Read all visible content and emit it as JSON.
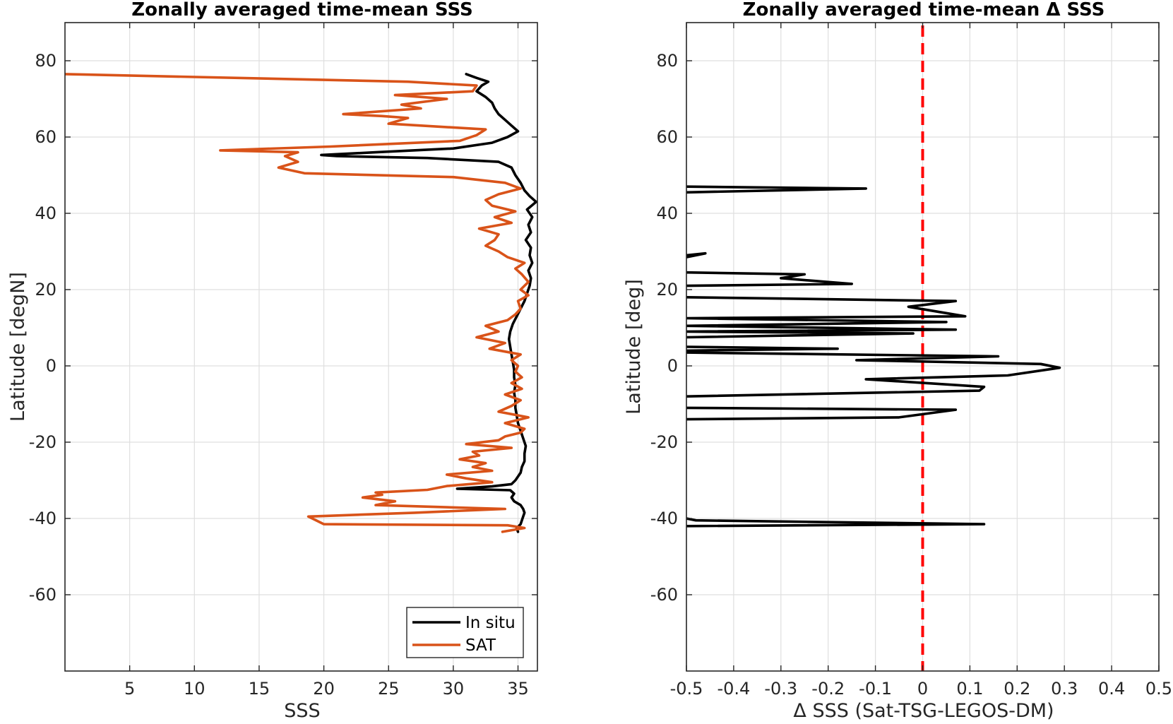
{
  "chart_data": [
    {
      "type": "line",
      "title": "Zonally averaged time-mean SSS",
      "xlabel": "SSS",
      "ylabel": "Latitude [degN]",
      "xlim": [
        0,
        36.5
      ],
      "ylim": [
        -80,
        90
      ],
      "xticks": [
        5,
        10,
        15,
        20,
        25,
        30,
        35
      ],
      "yticks": [
        -60,
        -40,
        -20,
        0,
        20,
        40,
        60,
        80
      ],
      "grid": true,
      "legend": "bottom-right",
      "series": [
        {
          "name": "In situ",
          "color": "#000000",
          "points": [
            [
              35,
              -43.5
            ],
            [
              34.9,
              -42.5
            ],
            [
              35.2,
              -41.5
            ],
            [
              35.3,
              -40.5
            ],
            [
              35.4,
              -39.5
            ],
            [
              35.5,
              -38.5
            ],
            [
              35.4,
              -37.5
            ],
            [
              35.2,
              -36.5
            ],
            [
              34.7,
              -35.5
            ],
            [
              34.5,
              -34.5
            ],
            [
              34.7,
              -33.5
            ],
            [
              34.4,
              -32.6
            ],
            [
              30.3,
              -32.2
            ],
            [
              33.0,
              -31.6
            ],
            [
              34.5,
              -31.0
            ],
            [
              34.8,
              -30.0
            ],
            [
              35.0,
              -29.0
            ],
            [
              35.2,
              -28.0
            ],
            [
              35.3,
              -26.5
            ],
            [
              35.5,
              -25.0
            ],
            [
              35.5,
              -23.0
            ],
            [
              35.6,
              -21.0
            ],
            [
              35.4,
              -19.0
            ],
            [
              35.2,
              -17.0
            ],
            [
              35.0,
              -15.0
            ],
            [
              34.9,
              -13.0
            ],
            [
              34.8,
              -11.0
            ],
            [
              34.8,
              -9.0
            ],
            [
              34.7,
              -7.0
            ],
            [
              34.8,
              -5.0
            ],
            [
              34.7,
              -3.0
            ],
            [
              34.7,
              -1.0
            ],
            [
              34.6,
              1.0
            ],
            [
              34.5,
              3.0
            ],
            [
              34.4,
              5.0
            ],
            [
              34.3,
              7.0
            ],
            [
              34.4,
              9.0
            ],
            [
              34.6,
              11.0
            ],
            [
              34.9,
              13.0
            ],
            [
              35.2,
              15.0
            ],
            [
              35.5,
              17.0
            ],
            [
              35.7,
              19.0
            ],
            [
              35.9,
              21.0
            ],
            [
              36.0,
              23.0
            ],
            [
              35.8,
              25.0
            ],
            [
              36.1,
              27.0
            ],
            [
              35.9,
              29.0
            ],
            [
              36.0,
              31.0
            ],
            [
              35.6,
              33.0
            ],
            [
              36.0,
              35.0
            ],
            [
              35.8,
              37.0
            ],
            [
              36.1,
              39.0
            ],
            [
              35.7,
              41.0
            ],
            [
              36.4,
              43.0
            ],
            [
              35.9,
              44.5
            ],
            [
              35.5,
              46.0
            ],
            [
              35.2,
              48.0
            ],
            [
              34.8,
              50.0
            ],
            [
              34.5,
              52.0
            ],
            [
              33.5,
              53.5
            ],
            [
              28.0,
              54.5
            ],
            [
              21.0,
              55.0
            ],
            [
              19.8,
              55.3
            ],
            [
              24.0,
              56.0
            ],
            [
              30.0,
              57.0
            ],
            [
              33.0,
              58.5
            ],
            [
              34.2,
              60.0
            ],
            [
              35.0,
              61.5
            ],
            [
              34.5,
              63.0
            ],
            [
              34.0,
              64.5
            ],
            [
              33.5,
              66.0
            ],
            [
              33.2,
              67.5
            ],
            [
              33.0,
              69.0
            ],
            [
              32.5,
              70.5
            ],
            [
              31.8,
              72.0
            ],
            [
              32.2,
              73.5
            ],
            [
              32.7,
              74.5
            ],
            [
              31.8,
              75.5
            ],
            [
              31.0,
              76.5
            ]
          ]
        },
        {
          "name": "SAT",
          "color": "#D95319",
          "points": [
            [
              33.8,
              -43.5
            ],
            [
              35.5,
              -42.5
            ],
            [
              34.2,
              -41.8
            ],
            [
              20.0,
              -41.5
            ],
            [
              18.8,
              -39.5
            ],
            [
              27.0,
              -38.5
            ],
            [
              34.0,
              -37.5
            ],
            [
              24.0,
              -36.5
            ],
            [
              25.5,
              -35.5
            ],
            [
              23.0,
              -34.5
            ],
            [
              24.5,
              -33.8
            ],
            [
              24.0,
              -33.2
            ],
            [
              28.0,
              -32.5
            ],
            [
              29.5,
              -31.5
            ],
            [
              33.0,
              -30.5
            ],
            [
              31.0,
              -29.5
            ],
            [
              29.5,
              -28.5
            ],
            [
              33.0,
              -27.5
            ],
            [
              31.5,
              -26.5
            ],
            [
              32.5,
              -25.5
            ],
            [
              30.5,
              -24.5
            ],
            [
              32.0,
              -23.5
            ],
            [
              31.5,
              -22.5
            ],
            [
              34.5,
              -21.5
            ],
            [
              31.0,
              -20.5
            ],
            [
              33.5,
              -19.5
            ],
            [
              34.0,
              -18.5
            ],
            [
              35.2,
              -17.5
            ],
            [
              35.5,
              -16.5
            ],
            [
              34.0,
              -15.0
            ],
            [
              35.8,
              -13.5
            ],
            [
              33.5,
              -12.0
            ],
            [
              34.5,
              -10.5
            ],
            [
              35.2,
              -9.0
            ],
            [
              34.0,
              -7.5
            ],
            [
              35.3,
              -6.0
            ],
            [
              34.5,
              -4.5
            ],
            [
              35.3,
              -3.0
            ],
            [
              34.8,
              -1.5
            ],
            [
              35.0,
              0.0
            ],
            [
              34.5,
              1.5
            ],
            [
              35.2,
              3.0
            ],
            [
              32.8,
              4.5
            ],
            [
              34.0,
              6.0
            ],
            [
              31.8,
              7.5
            ],
            [
              33.5,
              9.0
            ],
            [
              32.5,
              10.5
            ],
            [
              34.2,
              12.0
            ],
            [
              34.8,
              13.5
            ],
            [
              35.2,
              15.0
            ],
            [
              35.0,
              17.0
            ],
            [
              35.8,
              18.5
            ],
            [
              35.2,
              20.0
            ],
            [
              35.8,
              22.0
            ],
            [
              35.3,
              24.0
            ],
            [
              34.8,
              25.5
            ],
            [
              35.5,
              27.0
            ],
            [
              34.2,
              28.5
            ],
            [
              33.5,
              30.0
            ],
            [
              32.5,
              31.5
            ],
            [
              33.2,
              33.0
            ],
            [
              33.5,
              34.5
            ],
            [
              32.0,
              36.0
            ],
            [
              34.5,
              37.5
            ],
            [
              33.2,
              39.0
            ],
            [
              34.8,
              40.5
            ],
            [
              33.0,
              42.0
            ],
            [
              32.5,
              43.5
            ],
            [
              33.5,
              45.0
            ],
            [
              35.2,
              46.5
            ],
            [
              34.0,
              48.0
            ],
            [
              30.0,
              49.5
            ],
            [
              18.5,
              50.5
            ],
            [
              16.5,
              52.0
            ],
            [
              18.0,
              53.5
            ],
            [
              17.0,
              55.0
            ],
            [
              18.0,
              56.0
            ],
            [
              12.0,
              56.5
            ],
            [
              20.5,
              57.5
            ],
            [
              30.5,
              59.0
            ],
            [
              31.8,
              60.5
            ],
            [
              32.5,
              62.0
            ],
            [
              25.0,
              63.5
            ],
            [
              26.5,
              65.0
            ],
            [
              24.5,
              65.5
            ],
            [
              21.5,
              66.0
            ],
            [
              27.5,
              67.5
            ],
            [
              26.0,
              68.5
            ],
            [
              29.5,
              70.0
            ],
            [
              25.5,
              71.0
            ],
            [
              31.5,
              72.0
            ],
            [
              31.8,
              73.5
            ],
            [
              26.5,
              74.5
            ],
            [
              0.0,
              76.5
            ]
          ]
        }
      ]
    },
    {
      "type": "line",
      "title": "Zonally averaged time-mean Δ SSS",
      "xlabel": "Δ SSS (Sat-TSG-LEGOS-DM)",
      "ylabel": "Latitude [deg]",
      "xlim": [
        -0.5,
        0.5
      ],
      "ylim": [
        -80,
        90
      ],
      "xticks": [
        -0.5,
        -0.4,
        -0.3,
        -0.2,
        -0.1,
        0,
        0.1,
        0.2,
        0.3,
        0.4,
        0.5
      ],
      "xticklabels": [
        "-0.5",
        "-0.4",
        "-0.3",
        "-0.2",
        "-0.1",
        "0",
        "0.1",
        "0.2",
        "0.3",
        "0.4",
        "0.5"
      ],
      "yticks": [
        -60,
        -40,
        -20,
        0,
        20,
        40,
        60,
        80
      ],
      "grid": true,
      "reference_line": {
        "x": 0,
        "color": "#FF0000",
        "style": "dashed"
      },
      "series": [
        {
          "color": "#000000",
          "segments": [
            [
              [
                -0.5,
                47.0
              ],
              [
                -0.12,
                46.5
              ],
              [
                -0.5,
                45.5
              ]
            ],
            [
              [
                -0.5,
                29.0
              ],
              [
                -0.46,
                29.5
              ],
              [
                -0.5,
                28.5
              ]
            ],
            [
              [
                -0.5,
                24.5
              ],
              [
                -0.25,
                24.0
              ],
              [
                -0.3,
                23.0
              ],
              [
                -0.15,
                21.5
              ],
              [
                -0.5,
                21.0
              ]
            ],
            [
              [
                -0.5,
                18.0
              ],
              [
                0.07,
                17.0
              ],
              [
                -0.03,
                15.5
              ],
              [
                0.09,
                13.0
              ],
              [
                -0.5,
                12.5
              ],
              [
                0.05,
                11.5
              ],
              [
                -0.5,
                10.5
              ],
              [
                0.07,
                9.5
              ],
              [
                -0.5,
                9.0
              ],
              [
                -0.02,
                8.5
              ],
              [
                -0.5,
                7.5
              ]
            ],
            [
              [
                -0.5,
                5.0
              ],
              [
                -0.18,
                4.5
              ],
              [
                -0.5,
                4.0
              ],
              [
                -0.5,
                3.5
              ],
              [
                0.16,
                2.5
              ],
              [
                -0.14,
                1.5
              ],
              [
                0.25,
                0.5
              ],
              [
                0.29,
                -0.5
              ],
              [
                0.18,
                -2.5
              ],
              [
                -0.12,
                -3.5
              ],
              [
                0.13,
                -5.5
              ],
              [
                0.12,
                -6.5
              ],
              [
                -0.5,
                -8.0
              ]
            ],
            [
              [
                -0.5,
                -11.0
              ],
              [
                0.07,
                -11.5
              ],
              [
                -0.05,
                -13.5
              ],
              [
                -0.5,
                -14.0
              ]
            ],
            [
              [
                -0.5,
                -40.0
              ],
              [
                -0.48,
                -40.5
              ],
              [
                0.13,
                -41.5
              ],
              [
                -0.5,
                -42.0
              ]
            ]
          ]
        }
      ]
    }
  ],
  "legend": {
    "entries": [
      {
        "label": "In situ",
        "color": "#000000"
      },
      {
        "label": "SAT",
        "color": "#D95319"
      }
    ]
  }
}
